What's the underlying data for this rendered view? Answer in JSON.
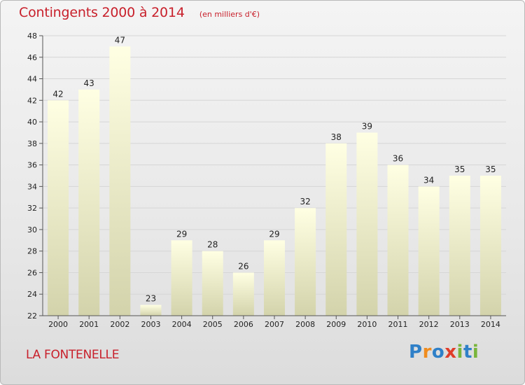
{
  "header": {
    "title": "Contingents 2000 à 2014",
    "subtitle": "(en milliers d'€)"
  },
  "commune": "LA FONTENELLE",
  "logo": {
    "letters": [
      "P",
      "r",
      "o",
      "x",
      "i",
      "t",
      "i"
    ],
    "colors": [
      "#2f80c8",
      "#f08c1e",
      "#2f80c8",
      "#e03d2a",
      "#79b53b",
      "#2f80c8",
      "#79b53b"
    ]
  },
  "colors": {
    "title": "#c8202b",
    "bar_top": "#ffffe3",
    "bar_bottom": "#d3d3ab",
    "grid": "#d6d6d6"
  },
  "chart_data": {
    "type": "bar",
    "categories": [
      "2000",
      "2001",
      "2002",
      "2003",
      "2004",
      "2005",
      "2006",
      "2007",
      "2008",
      "2009",
      "2010",
      "2011",
      "2012",
      "2013",
      "2014"
    ],
    "values": [
      42,
      43,
      47,
      23,
      29,
      28,
      26,
      29,
      32,
      38,
      39,
      36,
      34,
      35,
      35
    ],
    "title": "Contingents 2000 à 2014",
    "ylim": [
      22,
      48
    ],
    "yticks": [
      22,
      24,
      26,
      28,
      30,
      32,
      34,
      36,
      38,
      40,
      42,
      44,
      46,
      48
    ],
    "grid": true,
    "data_labels": true
  }
}
